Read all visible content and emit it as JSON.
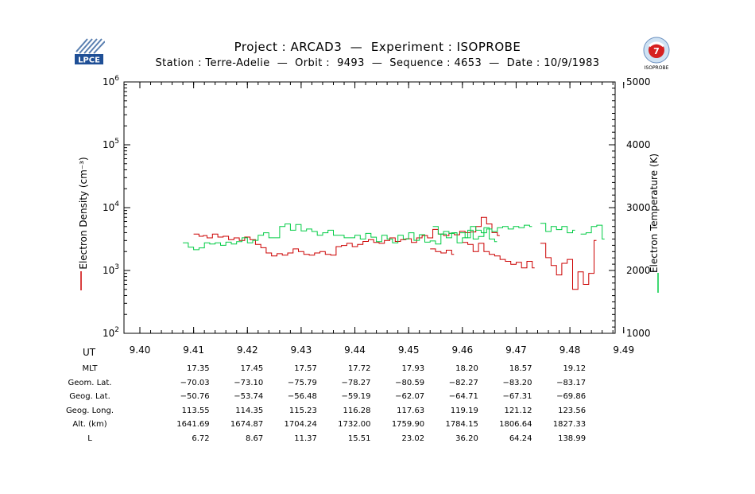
{
  "header": {
    "title": "Project : ARCAD3  —  Experiment : ISOPROBE",
    "subtitle": "Station : Terre-Adelie  —  Orbit :  9493  —  Sequence : 4653  —  Date : 10/9/1983",
    "logo_left_text": "LPCE",
    "logo_right_text": "ISOPROBE"
  },
  "chart_data": {
    "type": "line",
    "xlabel": "UT",
    "ylabel_left": "Electron Density (cm⁻³)",
    "ylabel_right": "Electron Temperature (K)",
    "x_ticks": [
      "9.40",
      "9.41",
      "9.42",
      "9.43",
      "9.44",
      "9.45",
      "9.46",
      "9.47",
      "9.48",
      "9.49"
    ],
    "xlim": [
      9.4,
      9.49
    ],
    "y_left": {
      "scale": "log",
      "lim": [
        100,
        1000000
      ],
      "tick_labels": [
        [
          "10",
          "2"
        ],
        [
          "10",
          "3"
        ],
        [
          "10",
          "4"
        ],
        [
          "10",
          "5"
        ],
        [
          "10",
          "6"
        ]
      ]
    },
    "y_right": {
      "scale": "linear",
      "lim": [
        1000,
        5000
      ],
      "tick_labels": [
        "1000",
        "2000",
        "3000",
        "4000",
        "5000"
      ]
    },
    "series": [
      {
        "color": "#cc0000",
        "axis": "left",
        "segments": [
          [
            [
              9.41,
              3800
            ],
            [
              9.411,
              3500
            ],
            [
              9.4118,
              3600
            ],
            [
              9.4125,
              3300
            ],
            [
              9.4135,
              3800
            ],
            [
              9.4145,
              3400
            ],
            [
              9.4155,
              3500
            ],
            [
              9.4165,
              3100
            ],
            [
              9.4175,
              3300
            ],
            [
              9.4185,
              3000
            ],
            [
              9.4195,
              3400
            ],
            [
              9.4205,
              3100
            ],
            [
              9.4215,
              2600
            ],
            [
              9.4225,
              2300
            ],
            [
              9.4235,
              1900
            ],
            [
              9.4245,
              1700
            ],
            [
              9.4255,
              1850
            ],
            [
              9.4265,
              1750
            ],
            [
              9.4275,
              1900
            ],
            [
              9.4285,
              2200
            ],
            [
              9.4295,
              2000
            ],
            [
              9.4305,
              1800
            ],
            [
              9.4315,
              1750
            ],
            [
              9.4325,
              1900
            ],
            [
              9.4335,
              2000
            ],
            [
              9.4345,
              1800
            ],
            [
              9.4355,
              1750
            ],
            [
              9.4365,
              2400
            ],
            [
              9.4375,
              2500
            ],
            [
              9.4385,
              2700
            ],
            [
              9.4395,
              2400
            ],
            [
              9.4405,
              2600
            ],
            [
              9.4415,
              2900
            ],
            [
              9.4425,
              3100
            ],
            [
              9.4435,
              2800
            ],
            [
              9.4445,
              2700
            ],
            [
              9.4455,
              3000
            ],
            [
              9.4465,
              3300
            ],
            [
              9.4475,
              2900
            ],
            [
              9.4485,
              3100
            ],
            [
              9.4495,
              3200
            ],
            [
              9.4505,
              2800
            ],
            [
              9.4515,
              3300
            ],
            [
              9.4525,
              3600
            ],
            [
              9.4535,
              3300
            ],
            [
              9.4545,
              4500
            ],
            [
              9.4555,
              3800
            ],
            [
              9.4565,
              3600
            ],
            [
              9.4575,
              3900
            ],
            [
              9.4585,
              3700
            ],
            [
              9.4595,
              4200
            ],
            [
              9.4605,
              4000
            ],
            [
              9.4615,
              4100
            ],
            [
              9.4625,
              5000
            ],
            [
              9.4635,
              7000
            ],
            [
              9.4645,
              5500
            ],
            [
              9.4655,
              4000
            ],
            [
              9.4665,
              3600
            ]
          ],
          [
            [
              9.454,
              2200
            ],
            [
              9.455,
              2000
            ],
            [
              9.456,
              1900
            ],
            [
              9.457,
              2100
            ],
            [
              9.458,
              1800
            ]
          ],
          [
            [
              9.46,
              2800
            ],
            [
              9.461,
              2600
            ],
            [
              9.462,
              2000
            ],
            [
              9.463,
              2700
            ],
            [
              9.464,
              2000
            ],
            [
              9.465,
              1800
            ],
            [
              9.466,
              1700
            ],
            [
              9.467,
              1500
            ],
            [
              9.468,
              1400
            ],
            [
              9.469,
              1250
            ],
            [
              9.47,
              1350
            ],
            [
              9.471,
              1100
            ],
            [
              9.472,
              1400
            ],
            [
              9.473,
              1100
            ]
          ],
          [
            [
              9.4745,
              2700
            ],
            [
              9.4755,
              1600
            ],
            [
              9.4765,
              1200
            ],
            [
              9.4775,
              850
            ],
            [
              9.4785,
              1300
            ],
            [
              9.4795,
              1500
            ],
            [
              9.4805,
              500
            ],
            [
              9.4815,
              950
            ],
            [
              9.4825,
              600
            ],
            [
              9.4835,
              900
            ],
            [
              9.4845,
              3000
            ]
          ]
        ]
      },
      {
        "color": "#00cc44",
        "axis": "right",
        "segments": [
          [
            [
              9.408,
              2440
            ],
            [
              9.409,
              2370
            ],
            [
              9.41,
              2330
            ],
            [
              9.411,
              2360
            ],
            [
              9.412,
              2440
            ],
            [
              9.413,
              2420
            ],
            [
              9.414,
              2440
            ],
            [
              9.415,
              2400
            ],
            [
              9.416,
              2450
            ],
            [
              9.417,
              2420
            ],
            [
              9.418,
              2460
            ],
            [
              9.419,
              2520
            ],
            [
              9.42,
              2440
            ],
            [
              9.421,
              2480
            ],
            [
              9.422,
              2560
            ],
            [
              9.423,
              2600
            ],
            [
              9.424,
              2520
            ],
            [
              9.425,
              2520
            ],
            [
              9.426,
              2700
            ],
            [
              9.427,
              2740
            ],
            [
              9.428,
              2640
            ],
            [
              9.429,
              2730
            ],
            [
              9.43,
              2630
            ],
            [
              9.431,
              2660
            ],
            [
              9.432,
              2620
            ],
            [
              9.433,
              2560
            ],
            [
              9.434,
              2600
            ],
            [
              9.435,
              2640
            ],
            [
              9.436,
              2560
            ],
            [
              9.437,
              2560
            ],
            [
              9.438,
              2520
            ],
            [
              9.439,
              2520
            ],
            [
              9.44,
              2560
            ],
            [
              9.441,
              2500
            ],
            [
              9.442,
              2590
            ],
            [
              9.443,
              2530
            ],
            [
              9.444,
              2460
            ],
            [
              9.445,
              2560
            ],
            [
              9.446,
              2500
            ],
            [
              9.447,
              2440
            ],
            [
              9.448,
              2560
            ],
            [
              9.449,
              2500
            ],
            [
              9.45,
              2600
            ],
            [
              9.451,
              2480
            ],
            [
              9.452,
              2570
            ],
            [
              9.453,
              2450
            ],
            [
              9.454,
              2470
            ],
            [
              9.455,
              2420
            ],
            [
              9.456,
              2580
            ],
            [
              9.457,
              2520
            ],
            [
              9.458,
              2600
            ],
            [
              9.459,
              2440
            ],
            [
              9.46,
              2520
            ],
            [
              9.461,
              2640
            ],
            [
              9.462,
              2500
            ],
            [
              9.463,
              2540
            ],
            [
              9.464,
              2680
            ],
            [
              9.465,
              2500
            ],
            [
              9.466,
              2460
            ]
          ],
          [
            [
              9.4545,
              2700
            ],
            [
              9.4555,
              2580
            ],
            [
              9.4565,
              2620
            ],
            [
              9.4575,
              2590
            ],
            [
              9.4585,
              2600
            ]
          ],
          [
            [
              9.4595,
              2600
            ],
            [
              9.4605,
              2520
            ],
            [
              9.4615,
              2700
            ],
            [
              9.4625,
              2640
            ],
            [
              9.4635,
              2600
            ],
            [
              9.4645,
              2660
            ],
            [
              9.4655,
              2620
            ],
            [
              9.4665,
              2680
            ],
            [
              9.4675,
              2700
            ],
            [
              9.4685,
              2660
            ],
            [
              9.4695,
              2700
            ],
            [
              9.4705,
              2680
            ],
            [
              9.4715,
              2720
            ],
            [
              9.4725,
              2700
            ]
          ],
          [
            [
              9.4745,
              2750
            ],
            [
              9.4755,
              2620
            ],
            [
              9.4765,
              2700
            ],
            [
              9.4775,
              2650
            ],
            [
              9.4785,
              2700
            ],
            [
              9.4795,
              2600
            ],
            [
              9.4805,
              2640
            ]
          ],
          [
            [
              9.482,
              2580
            ],
            [
              9.483,
              2600
            ],
            [
              9.484,
              2700
            ],
            [
              9.485,
              2720
            ],
            [
              9.486,
              2500
            ]
          ]
        ]
      }
    ]
  },
  "table": {
    "ut_label": "UT",
    "columns": [
      "9.41",
      "9.42",
      "9.43",
      "9.44",
      "9.45",
      "9.46",
      "9.47",
      "9.48"
    ],
    "rows": [
      {
        "label": "MLT",
        "values": [
          "17.35",
          "17.45",
          "17.57",
          "17.72",
          "17.93",
          "18.20",
          "18.57",
          "19.12"
        ]
      },
      {
        "label": "Geom. Lat.",
        "values": [
          "−70.03",
          "−73.10",
          "−75.79",
          "−78.27",
          "−80.59",
          "−82.27",
          "−83.20",
          "−83.17"
        ]
      },
      {
        "label": "Geog. Lat.",
        "values": [
          "−50.76",
          "−53.74",
          "−56.48",
          "−59.19",
          "−62.07",
          "−64.71",
          "−67.31",
          "−69.86"
        ]
      },
      {
        "label": "Geog. Long.",
        "values": [
          "113.55",
          "114.35",
          "115.23",
          "116.28",
          "117.63",
          "119.19",
          "121.12",
          "123.56"
        ]
      },
      {
        "label": "Alt. (km)",
        "values": [
          "1641.69",
          "1674.87",
          "1704.24",
          "1732.00",
          "1759.90",
          "1784.15",
          "1806.64",
          "1827.33"
        ]
      },
      {
        "label": "L",
        "values": [
          "6.72",
          "8.67",
          "11.37",
          "15.51",
          "23.02",
          "36.20",
          "64.24",
          "138.99"
        ]
      }
    ]
  }
}
